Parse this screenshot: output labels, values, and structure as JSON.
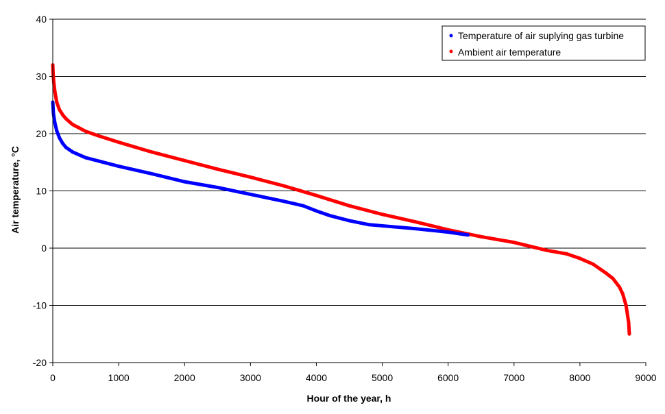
{
  "chart_data": {
    "type": "scatter",
    "title": "",
    "xlabel": "Hour of the year, h",
    "ylabel": "Air temperature, °C",
    "xlim": [
      0,
      9000
    ],
    "ylim": [
      -20,
      40
    ],
    "x_ticks": [
      0,
      1000,
      2000,
      3000,
      4000,
      5000,
      6000,
      7000,
      8000,
      9000
    ],
    "y_ticks": [
      -20,
      -10,
      0,
      10,
      20,
      30,
      40
    ],
    "grid": "horizontal",
    "legend_position": "top-right",
    "series": [
      {
        "name": "Temperature of air suplying gas turbine",
        "color": "#0000ff",
        "x": [
          0,
          10,
          30,
          60,
          100,
          150,
          200,
          300,
          400,
          500,
          700,
          1000,
          1500,
          2000,
          2500,
          3000,
          3500,
          3800,
          4000,
          4200,
          4500,
          4800,
          5000,
          5500,
          6000,
          6300
        ],
        "y": [
          25.5,
          23.5,
          22.0,
          20.5,
          19.3,
          18.3,
          17.6,
          16.8,
          16.3,
          15.8,
          15.2,
          14.3,
          13.0,
          11.6,
          10.6,
          9.4,
          8.2,
          7.4,
          6.5,
          5.7,
          4.8,
          4.1,
          3.9,
          3.4,
          2.8,
          2.3
        ]
      },
      {
        "name": "Ambient air temperature",
        "color": "#ff0000",
        "x": [
          0,
          5,
          15,
          30,
          60,
          100,
          150,
          200,
          300,
          400,
          500,
          700,
          1000,
          1500,
          2000,
          2500,
          3000,
          3500,
          4000,
          4500,
          5000,
          5500,
          6000,
          6500,
          7000,
          7500,
          7800,
          8000,
          8200,
          8400,
          8500,
          8600,
          8650,
          8700,
          8720,
          8740,
          8750
        ],
        "y": [
          32.0,
          30.5,
          29.0,
          27.5,
          25.5,
          24.2,
          23.3,
          22.6,
          21.6,
          21.0,
          20.4,
          19.6,
          18.5,
          16.8,
          15.3,
          13.8,
          12.4,
          10.9,
          9.2,
          7.4,
          5.9,
          4.6,
          3.2,
          2.0,
          1.0,
          -0.4,
          -1.0,
          -1.8,
          -2.8,
          -4.4,
          -5.3,
          -6.8,
          -8.0,
          -10.0,
          -11.5,
          -13.0,
          -15.0
        ]
      }
    ]
  }
}
